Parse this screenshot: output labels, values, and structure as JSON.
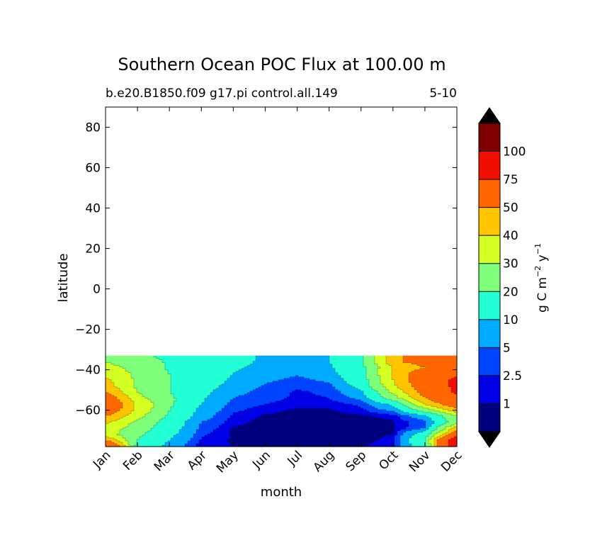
{
  "chart_data": {
    "type": "heatmap",
    "plot_kind": "filled-contour",
    "title": "Southern Ocean POC Flux at 100.00 m",
    "subtitle_left": "b.e20.B1850.f09 g17.pi control.all.149",
    "subtitle_right": "5-10",
    "xlabel": "month",
    "ylabel": "latitude",
    "x_categories": [
      "Jan",
      "Feb",
      "Mar",
      "Apr",
      "May",
      "Jun",
      "Jul",
      "Aug",
      "Sep",
      "Oct",
      "Nov",
      "Dec"
    ],
    "y_ticks": [
      80,
      60,
      40,
      20,
      0,
      -20,
      -40,
      -60
    ],
    "y_tick_labels": [
      "80",
      "60",
      "40",
      "20",
      "0",
      "−20",
      "−40",
      "−60"
    ],
    "ylim": [
      -78,
      90
    ],
    "data_lat_range": [
      -78,
      -33
    ],
    "colorbar": {
      "label": "g C m⁻² y⁻¹",
      "label_parts": [
        "g C m",
        "−2",
        " y",
        "−1"
      ],
      "levels": [
        1,
        2.5,
        5,
        10,
        20,
        30,
        40,
        50,
        75,
        100
      ],
      "level_labels": [
        "1",
        "2.5",
        "5",
        "10",
        "20",
        "30",
        "40",
        "50",
        "75",
        "100"
      ],
      "colors": [
        "#00007f",
        "#0000e6",
        "#0044ff",
        "#00aaff",
        "#22ffd4",
        "#7dff7a",
        "#d4ff22",
        "#ffc400",
        "#ff6600",
        "#f00f00",
        "#7f0000"
      ],
      "extend": "both",
      "extend_colors": [
        "#000000",
        "#000000"
      ]
    },
    "lat": [
      -78,
      -75,
      -72,
      -69,
      -66,
      -63,
      -60,
      -57,
      -54,
      -51,
      -48,
      -45,
      -42,
      -39,
      -36,
      -33
    ],
    "values": [
      [
        80,
        15,
        8,
        1.5,
        1,
        0.5,
        0.5,
        0.5,
        0.8,
        2,
        15,
        100
      ],
      [
        50,
        20,
        10,
        2,
        0.8,
        0.5,
        0.5,
        0.5,
        0.5,
        1.5,
        20,
        100
      ],
      [
        35,
        22,
        12,
        3,
        0.8,
        0.5,
        0.5,
        0.5,
        0.5,
        1,
        15,
        60
      ],
      [
        35,
        25,
        14,
        4,
        0.8,
        0.5,
        0.5,
        0.5,
        0.5,
        0.6,
        5,
        45
      ],
      [
        42,
        28,
        15,
        5,
        1.5,
        0.5,
        0.5,
        0.5,
        0.5,
        0.8,
        4,
        25
      ],
      [
        50,
        33,
        18,
        7,
        2,
        0.8,
        0.5,
        0.5,
        0.6,
        1.5,
        8,
        30
      ],
      [
        60,
        38,
        20,
        8,
        3,
        1.5,
        0.8,
        0.8,
        2,
        6,
        25,
        45
      ],
      [
        65,
        38,
        22,
        10,
        4,
        2.5,
        1.5,
        1.6,
        3,
        12,
        40,
        60
      ],
      [
        60,
        33,
        22,
        11,
        5,
        3.5,
        2,
        2.5,
        6,
        25,
        50,
        70
      ],
      [
        50,
        30,
        20,
        12,
        6,
        4,
        2.2,
        3,
        9,
        32,
        55,
        80
      ],
      [
        45,
        28,
        20,
        13,
        8,
        4.5,
        3,
        4,
        13,
        38,
        58,
        80
      ],
      [
        42,
        28,
        20,
        15,
        9,
        6,
        4,
        6,
        15,
        40,
        60,
        80
      ],
      [
        38,
        28,
        20,
        15,
        10,
        7,
        5.5,
        8,
        16,
        42,
        60,
        70
      ],
      [
        34,
        26,
        19,
        15,
        11,
        8,
        7,
        9,
        17,
        40,
        50,
        60
      ],
      [
        30,
        24,
        19,
        16,
        12,
        9,
        8,
        10,
        18,
        48,
        55,
        55
      ],
      [
        28,
        22,
        18,
        16,
        12,
        9,
        8,
        10,
        18,
        45,
        60,
        50
      ]
    ]
  }
}
